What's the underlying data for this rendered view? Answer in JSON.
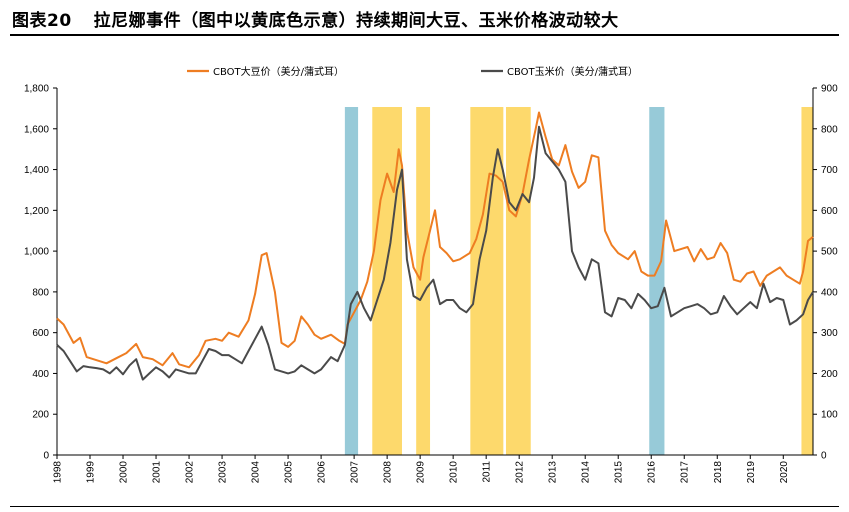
{
  "figure": {
    "label": "图表20",
    "title": "拉尼娜事件（图中以黄底色示意）持续期间大豆、玉米价格波动较大"
  },
  "chart_data": {
    "type": "line",
    "title": "拉尼娜事件（图中以黄底色示意）持续期间大豆、玉米价格波动较大",
    "xlabel": "",
    "ylabel_left": "",
    "ylabel_right": "",
    "x_range": [
      1998.0,
      2020.9
    ],
    "ylim_left": [
      0,
      1800
    ],
    "ylim_right": [
      0,
      900
    ],
    "left_ticks": [
      "0",
      "200",
      "400",
      "600",
      "800",
      "1,000",
      "1,200",
      "1,400",
      "1,600",
      "1,800"
    ],
    "right_ticks": [
      "0",
      "100",
      "200",
      "300",
      "400",
      "500",
      "600",
      "700",
      "800",
      "900"
    ],
    "x_tick_labels": [
      "1998",
      "1999",
      "2000",
      "2001",
      "2002",
      "2003",
      "2004",
      "2005",
      "2006",
      "2007",
      "2008",
      "2009",
      "2010",
      "2011",
      "2012",
      "2013",
      "2014",
      "2015",
      "2016",
      "2017",
      "2018",
      "2019",
      "2020"
    ],
    "grid": false,
    "legend_position": "top",
    "la_nina_periods": [
      [
        2007.55,
        2008.45
      ],
      [
        2008.88,
        2009.3
      ],
      [
        2010.52,
        2011.52
      ],
      [
        2011.6,
        2012.35
      ],
      [
        2020.55,
        2020.9
      ]
    ],
    "el_nino_periods": [
      [
        2006.72,
        2007.12
      ],
      [
        2015.94,
        2016.4
      ]
    ],
    "shade_colors": {
      "la_nina": "#fdd96c",
      "el_nino": "#97cad8"
    },
    "series": [
      {
        "name": "CBOT大豆价（美分/蒲式耳）",
        "axis": "left",
        "color": "#ee7d22",
        "points": [
          [
            1998.0,
            670
          ],
          [
            1998.2,
            640
          ],
          [
            1998.5,
            550
          ],
          [
            1998.7,
            575
          ],
          [
            1998.9,
            480
          ],
          [
            1999.2,
            465
          ],
          [
            1999.5,
            450
          ],
          [
            1999.8,
            475
          ],
          [
            2000.1,
            500
          ],
          [
            2000.4,
            545
          ],
          [
            2000.6,
            480
          ],
          [
            2000.9,
            470
          ],
          [
            2001.2,
            440
          ],
          [
            2001.5,
            500
          ],
          [
            2001.7,
            445
          ],
          [
            2002.0,
            430
          ],
          [
            2002.3,
            490
          ],
          [
            2002.5,
            560
          ],
          [
            2002.8,
            570
          ],
          [
            2003.0,
            560
          ],
          [
            2003.2,
            600
          ],
          [
            2003.5,
            580
          ],
          [
            2003.8,
            660
          ],
          [
            2004.0,
            790
          ],
          [
            2004.2,
            980
          ],
          [
            2004.35,
            990
          ],
          [
            2004.6,
            800
          ],
          [
            2004.8,
            550
          ],
          [
            2005.0,
            530
          ],
          [
            2005.2,
            560
          ],
          [
            2005.4,
            680
          ],
          [
            2005.6,
            640
          ],
          [
            2005.8,
            590
          ],
          [
            2006.0,
            570
          ],
          [
            2006.3,
            590
          ],
          [
            2006.55,
            560
          ],
          [
            2006.72,
            545
          ],
          [
            2006.8,
            640
          ],
          [
            2007.0,
            700
          ],
          [
            2007.2,
            760
          ],
          [
            2007.4,
            850
          ],
          [
            2007.6,
            1000
          ],
          [
            2007.8,
            1250
          ],
          [
            2008.0,
            1380
          ],
          [
            2008.2,
            1290
          ],
          [
            2008.35,
            1500
          ],
          [
            2008.45,
            1420
          ],
          [
            2008.6,
            1100
          ],
          [
            2008.8,
            920
          ],
          [
            2009.0,
            860
          ],
          [
            2009.1,
            970
          ],
          [
            2009.3,
            1100
          ],
          [
            2009.45,
            1200
          ],
          [
            2009.6,
            1020
          ],
          [
            2009.8,
            990
          ],
          [
            2010.0,
            950
          ],
          [
            2010.2,
            960
          ],
          [
            2010.5,
            990
          ],
          [
            2010.7,
            1060
          ],
          [
            2010.9,
            1180
          ],
          [
            2011.1,
            1380
          ],
          [
            2011.3,
            1370
          ],
          [
            2011.5,
            1340
          ],
          [
            2011.7,
            1200
          ],
          [
            2011.9,
            1170
          ],
          [
            2012.1,
            1280
          ],
          [
            2012.3,
            1450
          ],
          [
            2012.5,
            1600
          ],
          [
            2012.6,
            1680
          ],
          [
            2012.8,
            1560
          ],
          [
            2013.0,
            1450
          ],
          [
            2013.2,
            1420
          ],
          [
            2013.4,
            1520
          ],
          [
            2013.6,
            1390
          ],
          [
            2013.8,
            1310
          ],
          [
            2014.0,
            1340
          ],
          [
            2014.2,
            1470
          ],
          [
            2014.4,
            1460
          ],
          [
            2014.6,
            1100
          ],
          [
            2014.8,
            1030
          ],
          [
            2015.0,
            990
          ],
          [
            2015.3,
            960
          ],
          [
            2015.5,
            1000
          ],
          [
            2015.7,
            900
          ],
          [
            2015.9,
            880
          ],
          [
            2016.1,
            880
          ],
          [
            2016.3,
            950
          ],
          [
            2016.45,
            1150
          ],
          [
            2016.7,
            1000
          ],
          [
            2016.9,
            1010
          ],
          [
            2017.1,
            1020
          ],
          [
            2017.3,
            950
          ],
          [
            2017.5,
            1010
          ],
          [
            2017.7,
            960
          ],
          [
            2017.9,
            970
          ],
          [
            2018.1,
            1040
          ],
          [
            2018.3,
            990
          ],
          [
            2018.5,
            860
          ],
          [
            2018.7,
            850
          ],
          [
            2018.9,
            890
          ],
          [
            2019.1,
            900
          ],
          [
            2019.3,
            830
          ],
          [
            2019.5,
            880
          ],
          [
            2019.7,
            900
          ],
          [
            2019.9,
            920
          ],
          [
            2020.1,
            880
          ],
          [
            2020.3,
            860
          ],
          [
            2020.5,
            840
          ],
          [
            2020.6,
            900
          ],
          [
            2020.75,
            1050
          ],
          [
            2020.9,
            1070
          ]
        ]
      },
      {
        "name": "CBOT玉米价（美分/蒲式耳）",
        "axis": "right",
        "color": "#4a4a4a",
        "points": [
          [
            1998.0,
            270
          ],
          [
            1998.2,
            255
          ],
          [
            1998.4,
            230
          ],
          [
            1998.6,
            205
          ],
          [
            1998.8,
            218
          ],
          [
            1999.0,
            215
          ],
          [
            1999.2,
            213
          ],
          [
            1999.4,
            210
          ],
          [
            1999.6,
            200
          ],
          [
            1999.8,
            215
          ],
          [
            2000.0,
            198
          ],
          [
            2000.2,
            220
          ],
          [
            2000.4,
            235
          ],
          [
            2000.6,
            185
          ],
          [
            2000.8,
            200
          ],
          [
            2001.0,
            215
          ],
          [
            2001.2,
            205
          ],
          [
            2001.4,
            190
          ],
          [
            2001.6,
            210
          ],
          [
            2001.8,
            205
          ],
          [
            2002.0,
            200
          ],
          [
            2002.2,
            200
          ],
          [
            2002.4,
            230
          ],
          [
            2002.6,
            260
          ],
          [
            2002.8,
            255
          ],
          [
            2003.0,
            245
          ],
          [
            2003.2,
            245
          ],
          [
            2003.4,
            235
          ],
          [
            2003.6,
            225
          ],
          [
            2003.8,
            255
          ],
          [
            2004.0,
            285
          ],
          [
            2004.2,
            315
          ],
          [
            2004.4,
            270
          ],
          [
            2004.6,
            210
          ],
          [
            2004.8,
            205
          ],
          [
            2005.0,
            200
          ],
          [
            2005.2,
            205
          ],
          [
            2005.4,
            220
          ],
          [
            2005.6,
            210
          ],
          [
            2005.8,
            200
          ],
          [
            2006.0,
            210
          ],
          [
            2006.3,
            240
          ],
          [
            2006.5,
            230
          ],
          [
            2006.72,
            270
          ],
          [
            2006.9,
            370
          ],
          [
            2007.1,
            400
          ],
          [
            2007.3,
            360
          ],
          [
            2007.5,
            330
          ],
          [
            2007.7,
            380
          ],
          [
            2007.9,
            430
          ],
          [
            2008.1,
            520
          ],
          [
            2008.3,
            650
          ],
          [
            2008.45,
            700
          ],
          [
            2008.6,
            480
          ],
          [
            2008.8,
            390
          ],
          [
            2009.0,
            380
          ],
          [
            2009.2,
            410
          ],
          [
            2009.4,
            430
          ],
          [
            2009.6,
            370
          ],
          [
            2009.8,
            380
          ],
          [
            2010.0,
            380
          ],
          [
            2010.2,
            360
          ],
          [
            2010.4,
            350
          ],
          [
            2010.6,
            370
          ],
          [
            2010.8,
            480
          ],
          [
            2011.0,
            550
          ],
          [
            2011.2,
            680
          ],
          [
            2011.35,
            750
          ],
          [
            2011.5,
            700
          ],
          [
            2011.7,
            620
          ],
          [
            2011.9,
            600
          ],
          [
            2012.1,
            640
          ],
          [
            2012.3,
            620
          ],
          [
            2012.45,
            680
          ],
          [
            2012.6,
            805
          ],
          [
            2012.8,
            740
          ],
          [
            2013.0,
            720
          ],
          [
            2013.2,
            700
          ],
          [
            2013.4,
            670
          ],
          [
            2013.6,
            500
          ],
          [
            2013.8,
            460
          ],
          [
            2014.0,
            430
          ],
          [
            2014.2,
            480
          ],
          [
            2014.4,
            470
          ],
          [
            2014.6,
            350
          ],
          [
            2014.8,
            340
          ],
          [
            2015.0,
            385
          ],
          [
            2015.2,
            380
          ],
          [
            2015.4,
            360
          ],
          [
            2015.6,
            395
          ],
          [
            2015.8,
            380
          ],
          [
            2016.0,
            360
          ],
          [
            2016.2,
            365
          ],
          [
            2016.4,
            410
          ],
          [
            2016.6,
            340
          ],
          [
            2016.8,
            350
          ],
          [
            2017.0,
            360
          ],
          [
            2017.2,
            365
          ],
          [
            2017.4,
            370
          ],
          [
            2017.6,
            360
          ],
          [
            2017.8,
            345
          ],
          [
            2018.0,
            350
          ],
          [
            2018.2,
            390
          ],
          [
            2018.4,
            365
          ],
          [
            2018.6,
            345
          ],
          [
            2018.8,
            360
          ],
          [
            2019.0,
            375
          ],
          [
            2019.2,
            360
          ],
          [
            2019.4,
            420
          ],
          [
            2019.6,
            375
          ],
          [
            2019.8,
            385
          ],
          [
            2020.0,
            380
          ],
          [
            2020.2,
            320
          ],
          [
            2020.4,
            330
          ],
          [
            2020.6,
            345
          ],
          [
            2020.75,
            380
          ],
          [
            2020.9,
            400
          ]
        ]
      }
    ]
  }
}
